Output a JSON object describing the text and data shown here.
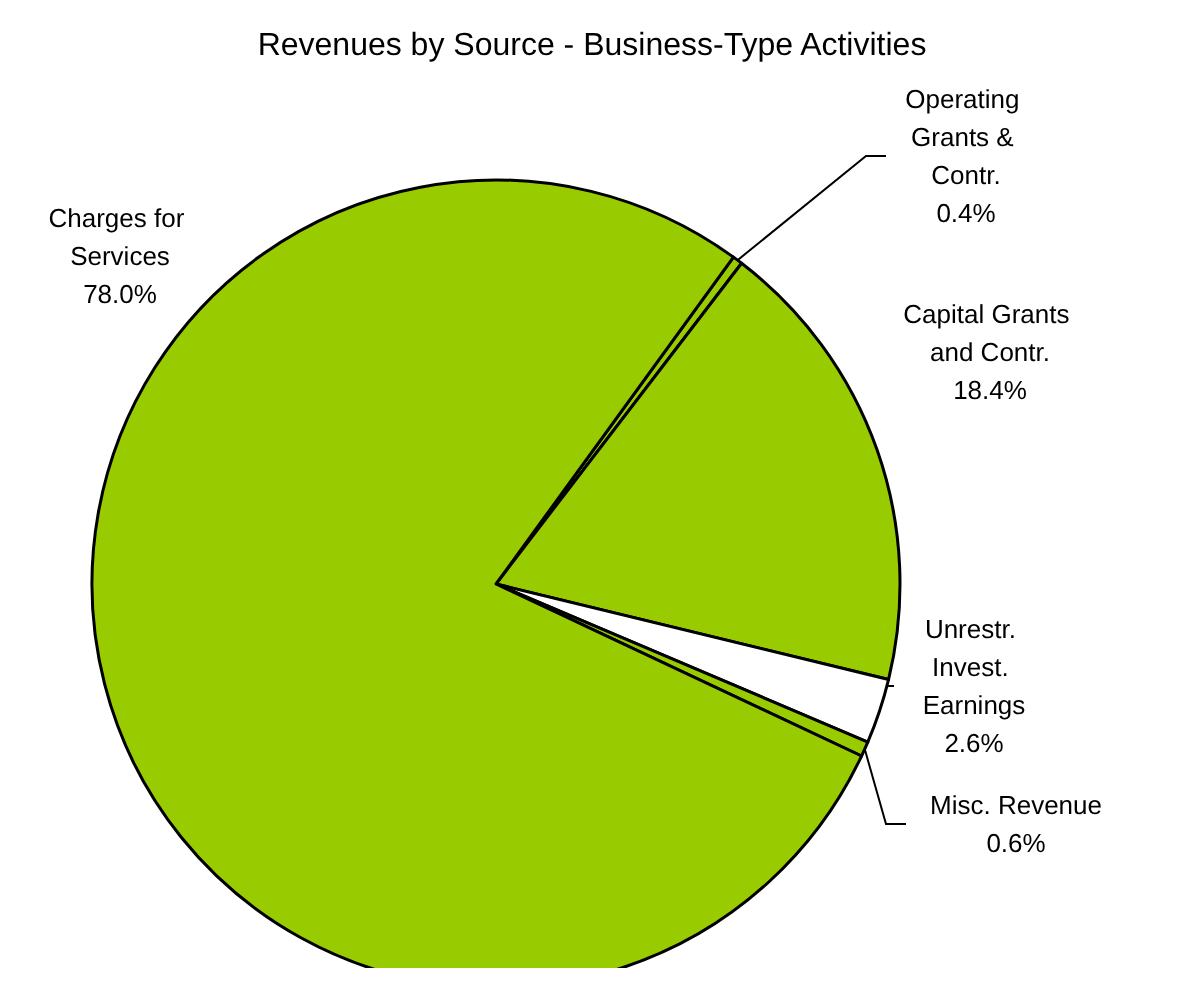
{
  "chart_data": {
    "type": "pie",
    "title": "Revenues by Source - Business-Type Activities",
    "categories": [
      "Operating Grants & Contr.",
      "Capital Grants and Contr.",
      "Unrestr. Invest. Earnings",
      "Misc. Revenue",
      "Charges for Services"
    ],
    "values": [
      0.4,
      18.4,
      2.6,
      0.6,
      78.0
    ],
    "colors": [
      "#99cc00",
      "#99cc00",
      "#ffffff",
      "#99cc00",
      "#99cc00"
    ],
    "value_labels": [
      "0.4%",
      "18.4%",
      "2.6%",
      "0.6%",
      "78.0%"
    ]
  }
}
